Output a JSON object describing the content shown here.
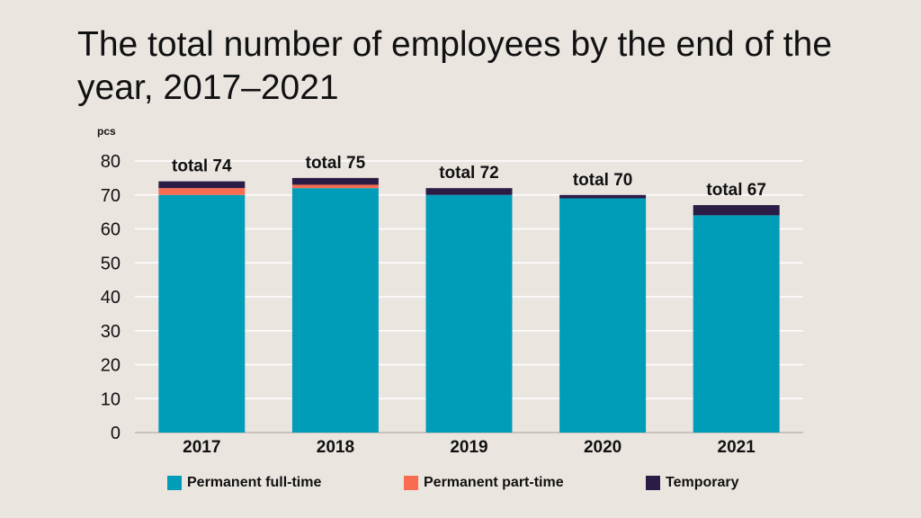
{
  "title": "The total number of employees by the end of the year, 2017–2021",
  "chart_data": {
    "type": "bar",
    "stacked": true,
    "title": "The total number of employees by the end of the year, 2017–2021",
    "unit_label": "pcs",
    "xlabel": "",
    "ylabel": "",
    "ylim": [
      0,
      80
    ],
    "yticks": [
      0,
      10,
      20,
      30,
      40,
      50,
      60,
      70,
      80
    ],
    "grid": true,
    "legend_position": "bottom",
    "categories": [
      "2017",
      "2018",
      "2019",
      "2020",
      "2021"
    ],
    "series": [
      {
        "name": "Permanent full-time",
        "color": "#009db8",
        "values": [
          70,
          72,
          70,
          69,
          64
        ]
      },
      {
        "name": "Permanent part-time",
        "color": "#f86c4f",
        "values": [
          2,
          1,
          0,
          0,
          0
        ]
      },
      {
        "name": "Temporary",
        "color": "#2b1c45",
        "values": [
          2,
          2,
          2,
          1,
          3
        ]
      }
    ],
    "totals": [
      74,
      75,
      72,
      70,
      67
    ],
    "total_labels": [
      "total 74",
      "total 75",
      "total 72",
      "total 70",
      "total 67"
    ]
  }
}
